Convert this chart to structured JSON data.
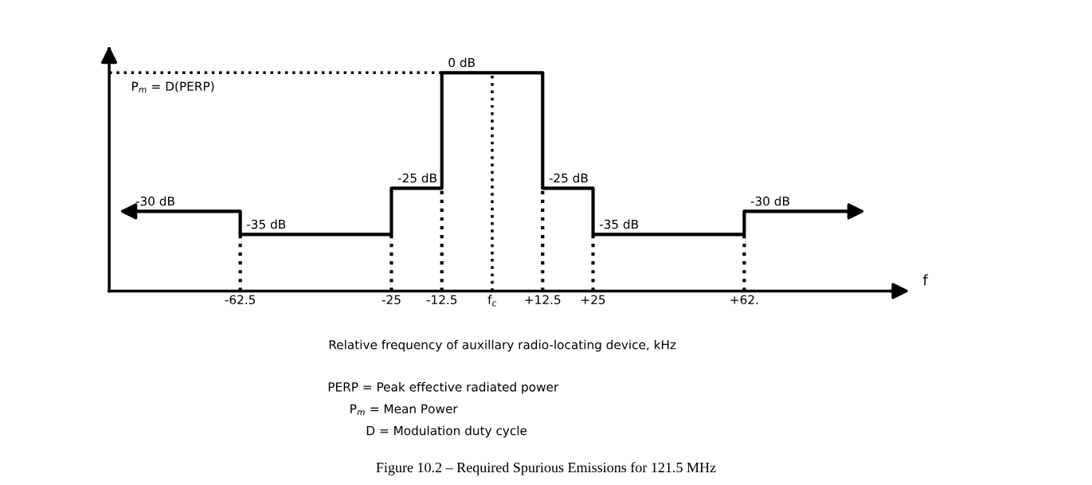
{
  "chart_data": {
    "type": "step",
    "title": "Figure 10.2 – Required Spurious Emissions for 121.5 MHz",
    "xlabel": "Relative frequency of auxillary radio-locating device, kHz",
    "x": [
      -90,
      -62.5,
      -25,
      -12.5,
      12.5,
      25,
      62.5,
      90
    ],
    "series": [
      {
        "color": "#000000",
        "values": [
          -30,
          -35,
          -25,
          0,
          -25,
          -35,
          -30,
          -30
        ],
        "value_labels": [
          "-30 dB",
          "-35 dB",
          "-25 dB",
          "0 dB",
          "-25 dB",
          "-35 dB",
          "-30 dB",
          null
        ]
      }
    ],
    "xlim": [
      -95,
      100
    ],
    "xticks": [
      {
        "value": -62.5,
        "label": "-62.5"
      },
      -25,
      {
        "value": -12.5,
        "label": "-12.5"
      },
      {
        "value": 0,
        "label": "f$_{c}$"
      },
      {
        "value": 12.5,
        "label": "+12.5"
      },
      {
        "value": 25,
        "label": "+25"
      },
      {
        "value": 62.5,
        "label": "+62."
      }
    ],
    "tick_labels": "x",
    "grid": "x",
    "legend": false,
    "line_style": "solid",
    "marker": "none",
    "ref_lines": [
      {
        "axis": "y",
        "value": 0,
        "line_style": "dotted",
        "color": "#000000"
      }
    ],
    "annotations": [
      "f",
      "P$_{m}$ = D(PERP)",
      "PERP = Peak effective radiated power",
      "P$_{m}$ = Mean Power",
      "D = Modulation duty cycle"
    ]
  }
}
